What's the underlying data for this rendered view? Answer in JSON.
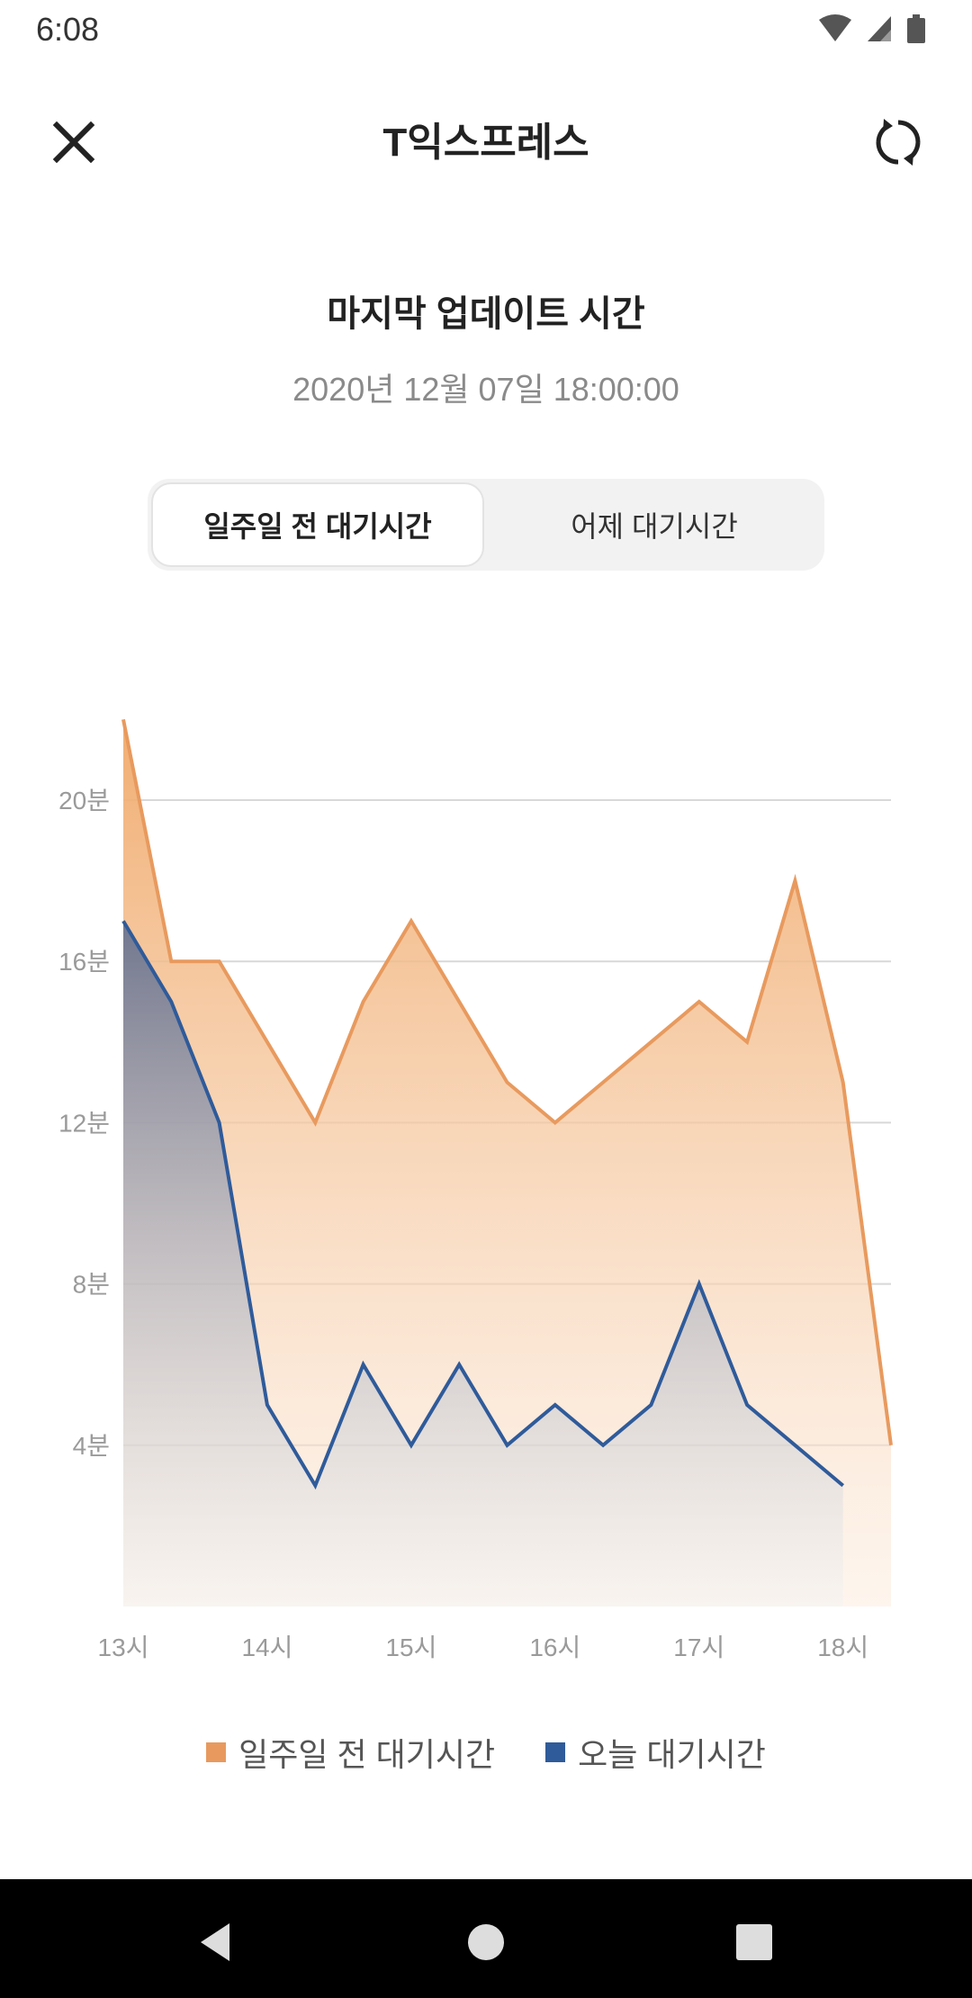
{
  "status_bar": {
    "time": "6:08"
  },
  "header": {
    "title": "T익스프레스"
  },
  "update": {
    "heading": "마지막 업데이트 시간",
    "timestamp": "2020년 12월 07일 18:00:00"
  },
  "tabs": [
    {
      "label": "일주일 전 대기시간",
      "selected": true
    },
    {
      "label": "어제 대기시간",
      "selected": false
    }
  ],
  "colors": {
    "week_ago": "#E89A5E",
    "today": "#2F5B9A"
  },
  "chart_data": {
    "type": "area",
    "x": [
      "13:00",
      "13:20",
      "13:40",
      "14:00",
      "14:20",
      "14:40",
      "15:00",
      "15:20",
      "15:40",
      "16:00",
      "16:20",
      "16:40",
      "17:00",
      "17:20",
      "17:40",
      "18:00",
      "18:20"
    ],
    "x_tick_labels": [
      "13시",
      "14시",
      "15시",
      "16시",
      "17시",
      "18시"
    ],
    "y_tick_labels": [
      "4분",
      "8분",
      "12분",
      "16분",
      "20분"
    ],
    "y_ticks": [
      4,
      8,
      12,
      16,
      20
    ],
    "ylim": [
      0,
      22
    ],
    "grid": true,
    "legend": "bottom",
    "series": [
      {
        "name": "일주일 전 대기시간",
        "color": "#E89A5E",
        "values": [
          22,
          16,
          16,
          14,
          12,
          15,
          17,
          15,
          13,
          12,
          13,
          14,
          15,
          14,
          18,
          13,
          4
        ]
      },
      {
        "name": "오늘 대기시간",
        "color": "#2F5B9A",
        "values": [
          17,
          15,
          12,
          5,
          3,
          6,
          4,
          6,
          4,
          5,
          4,
          5,
          8,
          5,
          4,
          3,
          null
        ]
      }
    ]
  }
}
